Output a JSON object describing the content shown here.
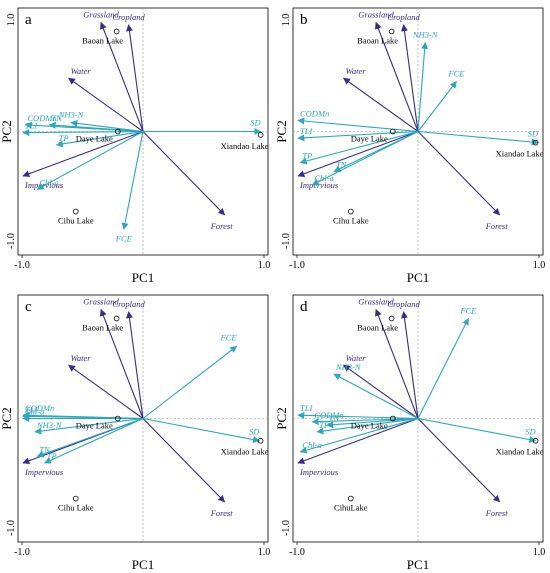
{
  "colors": {
    "env": "#3a2a8c",
    "wq": "#2aa7bd",
    "frame": "#000000",
    "dash": "#999999",
    "site": "#000000"
  },
  "chart_data": [
    {
      "type": "scatter",
      "panel_label": "a",
      "xlabel": "PC1",
      "ylabel": "PC2",
      "xlim": [
        -1.0,
        1.0
      ],
      "ylim": [
        -1.0,
        1.0
      ],
      "x_ticks": [
        "-1.0",
        "1.0"
      ],
      "y_ticks": [
        "1.0",
        "-1.0"
      ],
      "grid": false,
      "vectors": [
        {
          "name": "Grassland",
          "group": "env",
          "x": -0.35,
          "y": 0.98
        },
        {
          "name": "Cropland",
          "group": "env",
          "x": -0.12,
          "y": 0.96
        },
        {
          "name": "Water",
          "group": "env",
          "x": -0.62,
          "y": 0.48
        },
        {
          "name": "Impervious",
          "group": "env",
          "x": -1.0,
          "y": -0.4
        },
        {
          "name": "Forest",
          "group": "env",
          "x": 0.68,
          "y": -0.75
        },
        {
          "name": "CODMn",
          "group": "wq",
          "x": -0.98,
          "y": 0.06
        },
        {
          "name": "TN",
          "group": "wq",
          "x": -0.78,
          "y": 0.06
        },
        {
          "name": "NH3-N",
          "group": "wq",
          "x": -0.6,
          "y": 0.08
        },
        {
          "name": "TLI",
          "group": "wq",
          "x": -1.0,
          "y": -0.01
        },
        {
          "name": "TP",
          "group": "wq",
          "x": -0.72,
          "y": -0.12
        },
        {
          "name": "Chl-a",
          "group": "wq",
          "x": -0.88,
          "y": -0.52
        },
        {
          "name": "FCE",
          "group": "wq",
          "x": -0.16,
          "y": -0.88
        },
        {
          "name": "SD",
          "group": "wq",
          "x": 0.98,
          "y": 0.0
        }
      ],
      "sites": [
        {
          "name": "Baoan Lake",
          "x": -0.22,
          "y": 0.9
        },
        {
          "name": "Daye Lake",
          "x": -0.21,
          "y": 0.0
        },
        {
          "name": "Xiandao Lake",
          "x": 0.98,
          "y": -0.03
        },
        {
          "name": "Cihu Lake",
          "x": -0.56,
          "y": -0.72
        }
      ]
    },
    {
      "type": "scatter",
      "panel_label": "b",
      "xlabel": "PC1",
      "ylabel": "PC2",
      "xlim": [
        -1.0,
        1.0
      ],
      "ylim": [
        -1.0,
        1.0
      ],
      "x_ticks": [
        "-1.0",
        "1.0"
      ],
      "y_ticks": [
        "1.0",
        "-1.0"
      ],
      "grid": false,
      "vectors": [
        {
          "name": "Grassland",
          "group": "env",
          "x": -0.35,
          "y": 0.98
        },
        {
          "name": "Cropland",
          "group": "env",
          "x": -0.12,
          "y": 0.96
        },
        {
          "name": "Water",
          "group": "env",
          "x": -0.62,
          "y": 0.48
        },
        {
          "name": "Impervious",
          "group": "env",
          "x": -1.0,
          "y": -0.4
        },
        {
          "name": "Forest",
          "group": "env",
          "x": 0.68,
          "y": -0.75
        },
        {
          "name": "NH3-N",
          "group": "wq",
          "x": 0.06,
          "y": 0.8
        },
        {
          "name": "FCE",
          "group": "wq",
          "x": 0.32,
          "y": 0.45
        },
        {
          "name": "CODMn",
          "group": "wq",
          "x": -1.0,
          "y": 0.1
        },
        {
          "name": "TLI",
          "group": "wq",
          "x": -1.0,
          "y": -0.06
        },
        {
          "name": "TP",
          "group": "wq",
          "x": -0.98,
          "y": -0.28
        },
        {
          "name": "TN",
          "group": "wq",
          "x": -0.7,
          "y": -0.36
        },
        {
          "name": "Chl-a",
          "group": "wq",
          "x": -0.88,
          "y": -0.48
        },
        {
          "name": "SD",
          "group": "wq",
          "x": 1.0,
          "y": -0.1
        }
      ],
      "sites": [
        {
          "name": "Baoan Lake",
          "x": -0.22,
          "y": 0.9
        },
        {
          "name": "Daye Lake",
          "x": -0.21,
          "y": 0.0
        },
        {
          "name": "Xiandao Lake",
          "x": 0.98,
          "y": -0.1
        },
        {
          "name": "Cihu Lake",
          "x": -0.56,
          "y": -0.72
        }
      ]
    },
    {
      "type": "scatter",
      "panel_label": "c",
      "xlabel": "PC1",
      "ylabel": "PC2",
      "xlim": [
        -1.0,
        1.0
      ],
      "ylim": [
        -1.0,
        1.0
      ],
      "x_ticks": [
        "-1.0",
        "1.0"
      ],
      "y_ticks": [
        "-1.0"
      ],
      "grid": false,
      "vectors": [
        {
          "name": "Grassland",
          "group": "env",
          "x": -0.35,
          "y": 0.98
        },
        {
          "name": "Cropland",
          "group": "env",
          "x": -0.12,
          "y": 0.96
        },
        {
          "name": "Water",
          "group": "env",
          "x": -0.62,
          "y": 0.48
        },
        {
          "name": "Impervious",
          "group": "env",
          "x": -1.0,
          "y": -0.4
        },
        {
          "name": "Forest",
          "group": "env",
          "x": 0.68,
          "y": -0.75
        },
        {
          "name": "FCE",
          "group": "wq",
          "x": 0.78,
          "y": 0.65
        },
        {
          "name": "CODMn",
          "group": "wq",
          "x": -1.0,
          "y": 0.03
        },
        {
          "name": "TLI",
          "group": "wq",
          "x": -1.0,
          "y": 0.02
        },
        {
          "name": "Chl-a",
          "group": "wq",
          "x": -1.0,
          "y": 0.0
        },
        {
          "name": "NH3-N",
          "group": "wq",
          "x": -0.9,
          "y": -0.12
        },
        {
          "name": "TN",
          "group": "wq",
          "x": -0.88,
          "y": -0.34
        },
        {
          "name": "TP",
          "group": "wq",
          "x": -0.82,
          "y": -0.4
        },
        {
          "name": "SD",
          "group": "wq",
          "x": 0.97,
          "y": -0.2
        }
      ],
      "sites": [
        {
          "name": "Baoan Lake",
          "x": -0.22,
          "y": 0.9
        },
        {
          "name": "Daye Lake",
          "x": -0.21,
          "y": 0.0
        },
        {
          "name": "Xiandao Lake",
          "x": 0.98,
          "y": -0.2
        },
        {
          "name": "Cihu Lake",
          "x": -0.56,
          "y": -0.72
        }
      ]
    },
    {
      "type": "scatter",
      "panel_label": "d",
      "xlabel": "PC1",
      "ylabel": "PC2",
      "xlim": [
        -1.0,
        1.0
      ],
      "ylim": [
        -1.0,
        1.0
      ],
      "x_ticks": [
        "-1.0",
        "1.0"
      ],
      "y_ticks": [
        "-1.0"
      ],
      "grid": false,
      "vectors": [
        {
          "name": "Grassland",
          "group": "env",
          "x": -0.35,
          "y": 0.98
        },
        {
          "name": "Cropland",
          "group": "env",
          "x": -0.12,
          "y": 0.96
        },
        {
          "name": "Water",
          "group": "env",
          "x": -0.62,
          "y": 0.48
        },
        {
          "name": "Impervious",
          "group": "env",
          "x": -1.0,
          "y": -0.4
        },
        {
          "name": "Forest",
          "group": "env",
          "x": 0.68,
          "y": -0.75
        },
        {
          "name": "FCE",
          "group": "wq",
          "x": 0.42,
          "y": 0.9
        },
        {
          "name": "NH3-N",
          "group": "wq",
          "x": -0.7,
          "y": 0.4
        },
        {
          "name": "TLI",
          "group": "wq",
          "x": -1.0,
          "y": 0.03
        },
        {
          "name": "CODMn",
          "group": "wq",
          "x": -0.88,
          "y": -0.03
        },
        {
          "name": "TN",
          "group": "wq",
          "x": -0.76,
          "y": -0.06
        },
        {
          "name": "TP",
          "group": "wq",
          "x": -0.84,
          "y": -0.12
        },
        {
          "name": "Chl-a",
          "group": "wq",
          "x": -0.98,
          "y": -0.3
        },
        {
          "name": "SD",
          "group": "wq",
          "x": 0.98,
          "y": -0.2
        }
      ],
      "sites": [
        {
          "name": "Baoan Lake",
          "x": -0.22,
          "y": 0.9
        },
        {
          "name": "Daye Lake",
          "x": -0.21,
          "y": 0.0
        },
        {
          "name": "Xiandao Lake",
          "x": 0.98,
          "y": -0.2
        },
        {
          "name": "CihuLake",
          "x": -0.56,
          "y": -0.72
        }
      ]
    }
  ]
}
